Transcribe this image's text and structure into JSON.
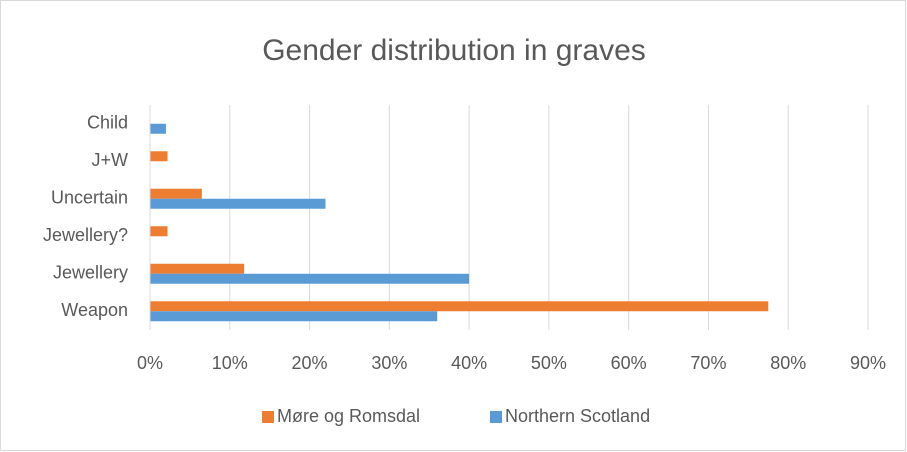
{
  "chart_data": {
    "type": "hbar",
    "title": "Gender distribution in graves",
    "categories": [
      "Weapon",
      "Jewellery",
      "Jewellery?",
      "Uncertain",
      "J+W",
      "Child"
    ],
    "series": [
      {
        "name": "Møre og Romsdal",
        "color": "#ed7d31",
        "values": [
          77.5,
          11.8,
          2.2,
          6.5,
          2.2,
          0
        ]
      },
      {
        "name": "Northern Scotland",
        "color": "#5b9bd5",
        "values": [
          36,
          40,
          0,
          22,
          0,
          2
        ]
      }
    ],
    "xlim": [
      0,
      90
    ],
    "xticks": [
      {
        "value": 0,
        "label": "0%"
      },
      {
        "value": 10,
        "label": "10%"
      },
      {
        "value": 20,
        "label": "20%"
      },
      {
        "value": 30,
        "label": "30%"
      },
      {
        "value": 40,
        "label": "40%"
      },
      {
        "value": 50,
        "label": "50%"
      },
      {
        "value": 60,
        "label": "60%"
      },
      {
        "value": 70,
        "label": "70%"
      },
      {
        "value": 80,
        "label": "80%"
      },
      {
        "value": 90,
        "label": "90%"
      }
    ],
    "grid": true,
    "legend": "bottom"
  }
}
